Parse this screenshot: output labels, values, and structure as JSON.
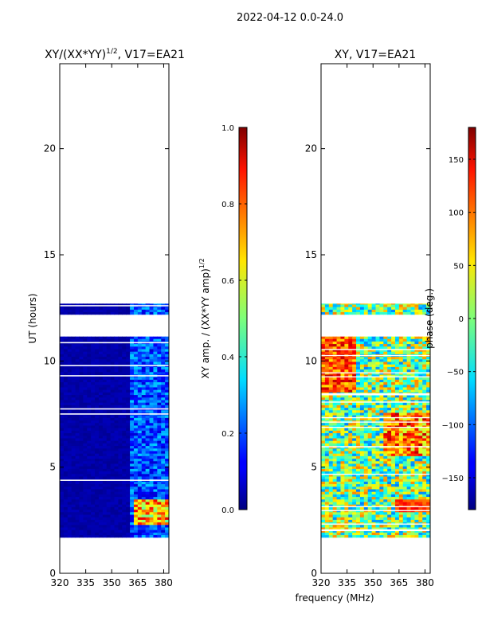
{
  "figure": {
    "suptitle": "2022-04-12 0.0-24.0",
    "shared_xlabel": "frequency (MHz)"
  },
  "chart_data": [
    {
      "type": "heatmap",
      "title_main": "XY/(XX*YY)",
      "title_sup": "1/2",
      "title_tail": ", V17=EA21",
      "ylabel": "UT (hours)",
      "x_ticks": [
        "320",
        "335",
        "350",
        "365",
        "380"
      ],
      "x_tick_values": [
        320,
        335,
        350,
        365,
        380
      ],
      "xlim": [
        320,
        383
      ],
      "y_ticks": [
        "0",
        "5",
        "10",
        "15",
        "20"
      ],
      "y_tick_values": [
        0,
        5,
        10,
        15,
        20
      ],
      "ylim": [
        0,
        24
      ],
      "data_coverage_hours": [
        [
          1.7,
          11.15
        ],
        [
          12.2,
          12.7
        ]
      ],
      "colorbar": {
        "label_main": "XY amp. / (XX*YY amp)",
        "label_sup": "1/2",
        "ticks": [
          "0.0",
          "0.2",
          "0.4",
          "0.6",
          "0.8",
          "1.0"
        ],
        "tick_values": [
          0.0,
          0.2,
          0.4,
          0.6,
          0.8,
          1.0
        ],
        "range": [
          0,
          1
        ],
        "colormap": "jet"
      }
    },
    {
      "type": "heatmap",
      "title": "XY, V17=EA21",
      "x_ticks": [
        "320",
        "335",
        "350",
        "365",
        "380"
      ],
      "x_tick_values": [
        320,
        335,
        350,
        365,
        380
      ],
      "xlim": [
        320,
        383
      ],
      "y_ticks": [
        "0",
        "5",
        "10",
        "15",
        "20"
      ],
      "y_tick_values": [
        0,
        5,
        10,
        15,
        20
      ],
      "ylim": [
        0,
        24
      ],
      "data_coverage_hours": [
        [
          1.7,
          11.15
        ],
        [
          12.2,
          12.7
        ]
      ],
      "colorbar": {
        "label": "phase (deg.)",
        "ticks": [
          "150",
          "100",
          "50",
          "0",
          "−50",
          "−100",
          "−150"
        ],
        "tick_values": [
          150,
          100,
          50,
          0,
          -50,
          -100,
          -150
        ],
        "range": [
          -180,
          180
        ],
        "colormap": "jet"
      }
    }
  ]
}
